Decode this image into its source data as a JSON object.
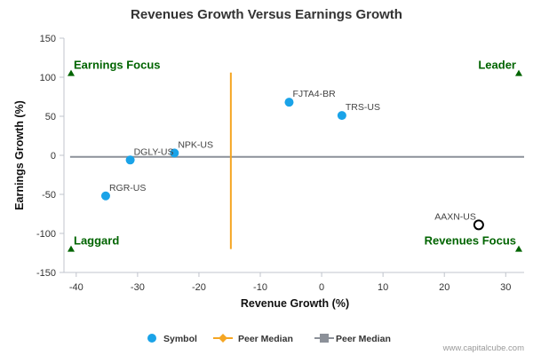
{
  "chart_data": {
    "type": "scatter",
    "title": "Revenues Growth Versus Earnings Growth",
    "xlabel": "Revenue Growth (%)",
    "ylabel": "Earnings Growth (%)",
    "xlim": [
      -42,
      33
    ],
    "ylim": [
      -150,
      150
    ],
    "xticks": [
      -40,
      -30,
      -20,
      -10,
      0,
      10,
      20,
      30
    ],
    "yticks": [
      150,
      100,
      50,
      0,
      -50,
      -100,
      -150
    ],
    "points": [
      {
        "symbol": "FJTA4-BR",
        "x": -5.3,
        "y": 68
      },
      {
        "symbol": "TRS-US",
        "x": 3.3,
        "y": 51
      },
      {
        "symbol": "NPK-US",
        "x": -24,
        "y": 3
      },
      {
        "symbol": "DGLY-US",
        "x": -31.2,
        "y": -6
      },
      {
        "symbol": "RGR-US",
        "x": -35.2,
        "y": -52
      },
      {
        "symbol": "AAXN-US",
        "x": 25.6,
        "y": -89,
        "highlight": true
      }
    ],
    "peer_median_x": -14.8,
    "peer_median_y": -2,
    "peer_median_x_range": [
      -120,
      106
    ],
    "peer_median_y_range": [
      -41,
      33
    ],
    "quadrants": {
      "top_left": "Earnings Focus",
      "top_right": "Leader",
      "bottom_left": "Laggard",
      "bottom_right": "Revenues Focus"
    },
    "legend": [
      {
        "label": "Symbol",
        "color": "#1aa3e8"
      },
      {
        "label": "Peer Median",
        "color": "#f5a623"
      },
      {
        "label": "Peer Median",
        "color": "#8c9199"
      }
    ],
    "credit": "www.capitalcube.com",
    "colors": {
      "point": "#1aa3e8",
      "vertical_median": "#f5a623",
      "horizontal_median": "#8c9199",
      "quadrant": "#006400",
      "axis": "#c0c4cc"
    }
  }
}
